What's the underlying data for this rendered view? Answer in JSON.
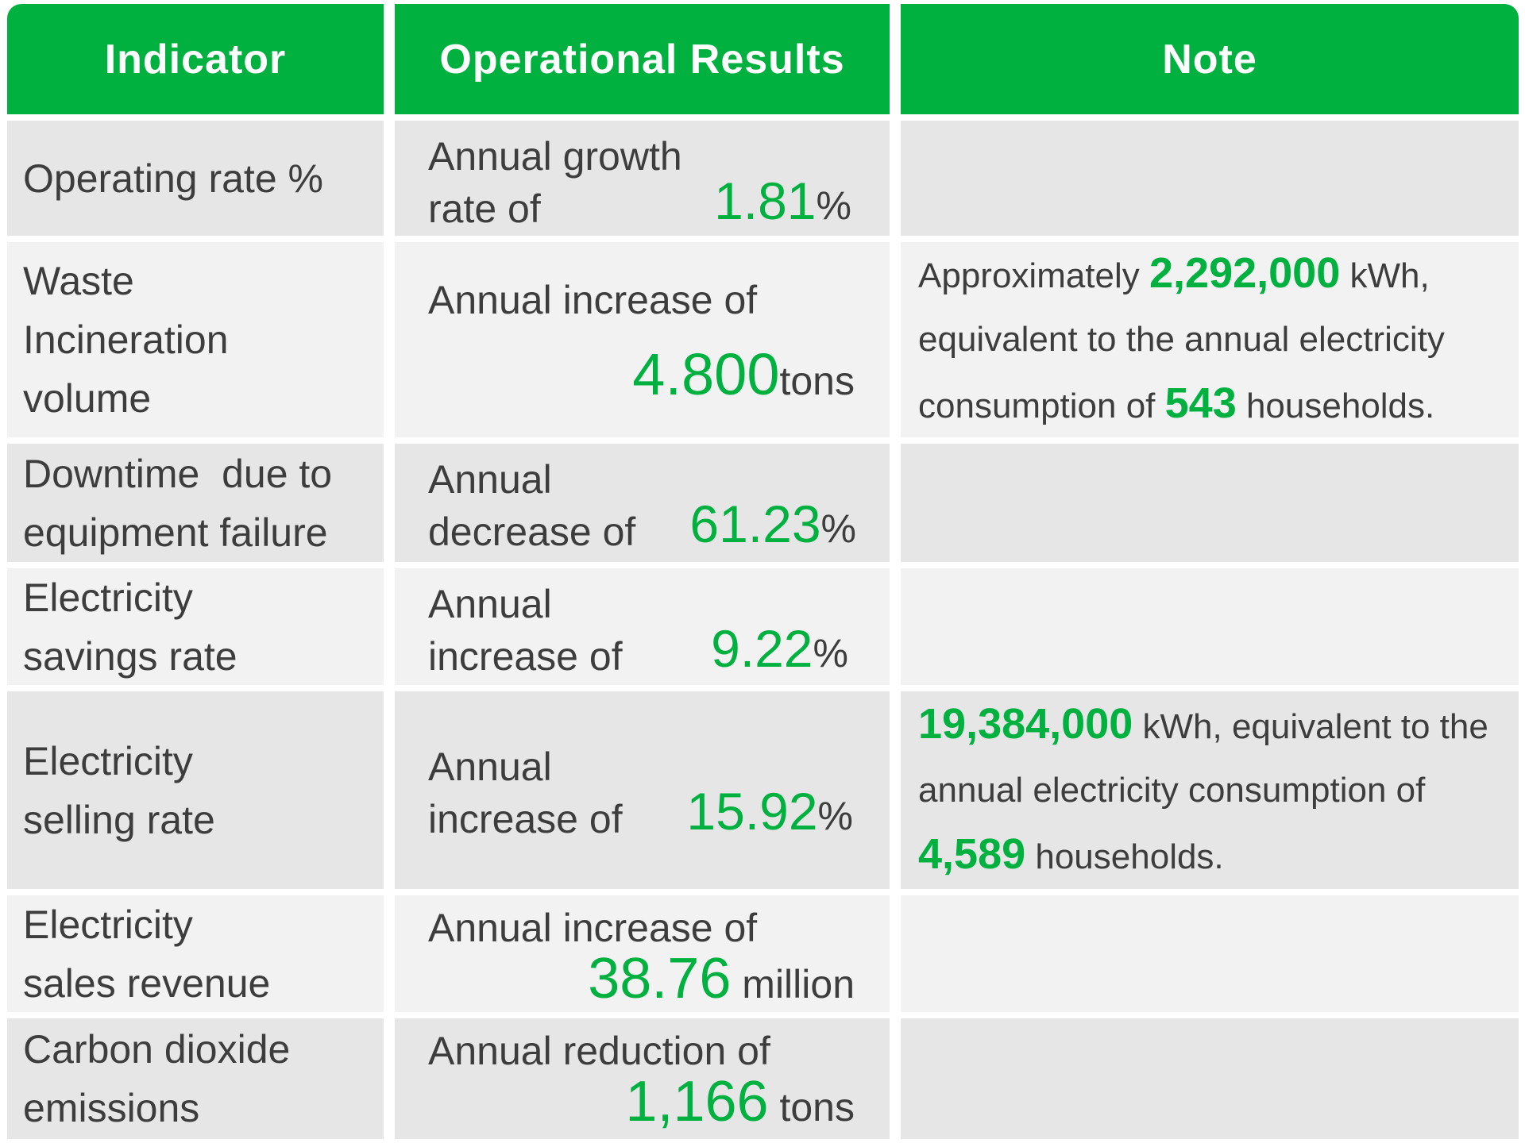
{
  "colors": {
    "accent": "#00b140",
    "row_dark": "#e6e6e6",
    "row_light": "#f2f2f2",
    "text": "#3d3d3d"
  },
  "headers": [
    "Indicator",
    "Operational Results",
    "Note"
  ],
  "rows": [
    {
      "indicator": [
        "Operating rate %"
      ],
      "result": {
        "line1": "Annual growth",
        "line2": "rate of",
        "value": "1.81",
        "unit": "%"
      }
    },
    {
      "indicator": [
        "Waste",
        "Incineration",
        "volume"
      ],
      "result": {
        "line1": "Annual increase of",
        "value": "4.800",
        "unit": "tons"
      },
      "note": {
        "pre": "Approximately ",
        "hl1": "2,292,000",
        "mid": " kWh, equivalent to the annual electricity consumption of ",
        "hl2": "543",
        "post": " households."
      }
    },
    {
      "indicator": [
        "Downtime  due to",
        "equipment failure"
      ],
      "result": {
        "line1": "Annual",
        "line2": "decrease of",
        "value": "61.23",
        "unit": "%"
      }
    },
    {
      "indicator": [
        "Electricity",
        "savings rate"
      ],
      "result": {
        "line1": "Annual",
        "line2": "increase of",
        "value": "9.22",
        "unit": "%"
      }
    },
    {
      "indicator": [
        "Electricity",
        "selling rate"
      ],
      "result": {
        "line1": "Annual",
        "line2": "increase of",
        "value": "15.92",
        "unit": "%"
      },
      "note": {
        "hl1": "19,384,000",
        "mid": " kWh, equivalent to the annual electricity consumption of ",
        "hl2": "4,589",
        "post": " households."
      }
    },
    {
      "indicator": [
        "Electricity",
        "sales revenue"
      ],
      "result": {
        "line1": "Annual increase of",
        "value": "38.76",
        "unit": " million"
      }
    },
    {
      "indicator": [
        "Carbon dioxide",
        "emissions"
      ],
      "result": {
        "line1": "Annual reduction of",
        "value": "1,166",
        "unit": " tons"
      }
    }
  ]
}
